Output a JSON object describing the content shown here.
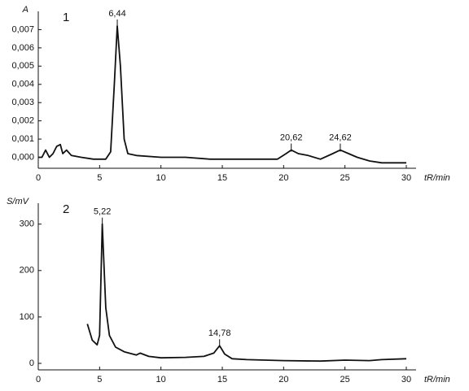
{
  "chart_data": [
    {
      "type": "line",
      "title": "1",
      "y_label": "A",
      "x_label": "tR/min",
      "xlim": [
        0,
        30
      ],
      "xticks": [
        0,
        5,
        10,
        15,
        20,
        25,
        30
      ],
      "ylim": [
        -0.0006,
        0.008
      ],
      "yticks": [
        {
          "value": 0,
          "label": "0,000"
        },
        {
          "value": 0.001,
          "label": "0,001"
        },
        {
          "value": 0.002,
          "label": "0,002"
        },
        {
          "value": 0.003,
          "label": "0,003"
        },
        {
          "value": 0.004,
          "label": "0,004"
        },
        {
          "value": 0.005,
          "label": "0,005"
        },
        {
          "value": 0.006,
          "label": "0,006"
        },
        {
          "value": 0.007,
          "label": "0,007"
        }
      ],
      "series": [
        {
          "color": "#111111",
          "x": [
            0,
            0.3,
            0.6,
            0.9,
            1.2,
            1.5,
            1.8,
            2.0,
            2.3,
            2.7,
            3.5,
            4.5,
            5.5,
            5.9,
            6.2,
            6.44,
            6.7,
            7.0,
            7.3,
            8,
            10,
            12,
            14,
            16,
            18,
            19.5,
            20.2,
            20.62,
            21.2,
            22,
            23,
            24,
            24.62,
            25.3,
            26,
            27,
            28,
            29,
            30
          ],
          "values": [
            0.0,
            0.0,
            0.0004,
            0.0,
            0.0002,
            0.0006,
            0.0007,
            0.0002,
            0.0004,
            0.0001,
            0.0,
            -0.0001,
            -0.0001,
            0.0003,
            0.004,
            0.0072,
            0.005,
            0.001,
            0.0002,
            0.0001,
            0.0,
            0.0,
            -0.0001,
            -0.0001,
            -0.0001,
            -0.0001,
            0.0002,
            0.0004,
            0.0002,
            0.0001,
            -0.0001,
            0.0002,
            0.0004,
            0.0002,
            0.0,
            -0.0002,
            -0.0003,
            -0.0003,
            -0.0003
          ]
        }
      ],
      "annotations": [
        {
          "x": 6.44,
          "text": "6,44"
        },
        {
          "x": 20.62,
          "text": "20,62"
        },
        {
          "x": 24.62,
          "text": "24,62"
        }
      ]
    },
    {
      "type": "line",
      "title": "2",
      "y_label": "S/mV",
      "x_label": "tR/min",
      "xlim": [
        0,
        30
      ],
      "xticks": [
        0,
        5,
        10,
        15,
        20,
        25,
        30
      ],
      "ylim": [
        -14,
        345
      ],
      "yticks": [
        0,
        100,
        200,
        300
      ],
      "series": [
        {
          "color": "#111111",
          "x": [
            4,
            4.4,
            4.8,
            5.0,
            5.22,
            5.5,
            5.8,
            6.3,
            7,
            8,
            8.3,
            9,
            10,
            12,
            13.5,
            14.3,
            14.78,
            15.2,
            15.8,
            17,
            20,
            23,
            25,
            27,
            28,
            30
          ],
          "values": [
            85,
            50,
            40,
            60,
            300,
            120,
            60,
            35,
            25,
            18,
            22,
            15,
            12,
            13,
            15,
            22,
            38,
            20,
            10,
            8,
            6,
            5,
            7,
            6,
            8,
            10
          ]
        }
      ],
      "annotations": [
        {
          "x": 5.22,
          "text": "5,22"
        },
        {
          "x": 14.78,
          "text": "14,78"
        }
      ]
    }
  ]
}
